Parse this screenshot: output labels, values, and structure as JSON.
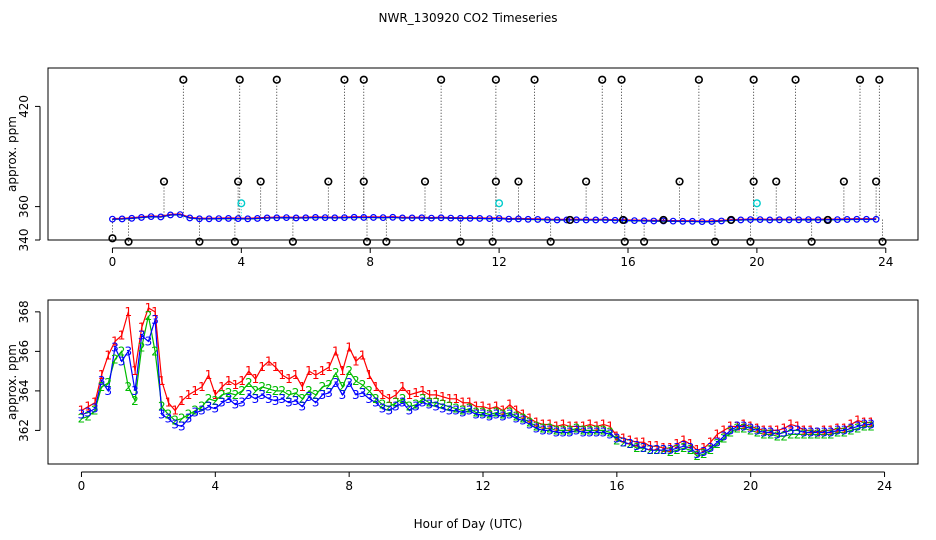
{
  "figure": {
    "title": "NWR_130920  CO2 Timeseries",
    "xlabel": "Hour of Day (UTC)"
  },
  "colors": {
    "series1": "#ff0000",
    "series2": "#00bb00",
    "series3": "#0000ff",
    "outlier": "#000000",
    "flagged": "#00cccc",
    "axis": "#000000"
  },
  "chart_data": [
    {
      "type": "scatter",
      "panel": "top",
      "title": "",
      "xlabel": "",
      "ylabel": "approx. ppm",
      "xlim": [
        -2,
        25
      ],
      "ylim": [
        340,
        443
      ],
      "xticks": [
        0,
        4,
        8,
        12,
        16,
        20,
        24
      ],
      "yticks": [
        340,
        360,
        420
      ],
      "ytick_labels": [
        "340",
        "360",
        "420"
      ],
      "grid": false,
      "baseline_hours": [
        0.0,
        0.3,
        0.6,
        0.9,
        1.2,
        1.5,
        1.8,
        2.1,
        2.4,
        2.7,
        3.0,
        3.3,
        3.6,
        3.9,
        4.2,
        4.5,
        4.8,
        5.1,
        5.4,
        5.7,
        6.0,
        6.3,
        6.6,
        6.9,
        7.2,
        7.5,
        7.8,
        8.1,
        8.4,
        8.7,
        9.0,
        9.3,
        9.6,
        9.9,
        10.2,
        10.5,
        10.8,
        11.1,
        11.4,
        11.7,
        12.0,
        12.3,
        12.6,
        12.9,
        13.2,
        13.5,
        13.8,
        14.1,
        14.4,
        14.7,
        15.0,
        15.3,
        15.6,
        15.9,
        16.2,
        16.5,
        16.8,
        17.1,
        17.4,
        17.7,
        18.0,
        18.3,
        18.6,
        18.9,
        19.2,
        19.5,
        19.8,
        20.1,
        20.4,
        20.7,
        21.0,
        21.3,
        21.6,
        21.9,
        22.2,
        22.5,
        22.8,
        23.1,
        23.4,
        23.7
      ],
      "baseline_values": [
        352.5,
        352.6,
        353.0,
        353.5,
        354.0,
        353.8,
        355.0,
        355.2,
        353.2,
        352.7,
        352.7,
        352.8,
        352.9,
        352.8,
        352.7,
        352.9,
        353.2,
        353.3,
        353.4,
        353.2,
        353.3,
        353.5,
        353.4,
        353.3,
        353.4,
        353.6,
        353.5,
        353.5,
        353.4,
        353.6,
        353.2,
        353.2,
        353.3,
        353.1,
        353.3,
        353.1,
        353.0,
        353.0,
        352.9,
        352.8,
        352.9,
        352.5,
        352.6,
        352.4,
        352.3,
        352.1,
        352.0,
        352.0,
        352.1,
        352.0,
        352.0,
        352.0,
        351.8,
        351.7,
        351.6,
        351.5,
        351.4,
        351.4,
        351.3,
        351.2,
        351.2,
        351.0,
        351.1,
        351.4,
        351.8,
        352.0,
        352.2,
        352.2,
        352.0,
        352.1,
        352.1,
        352.1,
        352.2,
        352.1,
        352.2,
        352.2,
        352.3,
        352.4,
        352.4,
        352.4
      ],
      "outliers": {
        "hours": [
          0.0,
          0.5,
          1.6,
          2.2,
          2.7,
          3.8,
          3.9,
          3.95,
          4.6,
          5.1,
          5.6,
          6.7,
          7.2,
          7.8,
          7.8,
          7.9,
          8.5,
          9.7,
          10.2,
          10.8,
          11.8,
          11.9,
          11.9,
          12.6,
          13.1,
          13.6,
          14.2,
          14.7,
          15.2,
          15.8,
          15.85,
          15.9,
          16.5,
          17.1,
          17.6,
          18.2,
          18.7,
          19.2,
          19.8,
          19.9,
          19.9,
          20.6,
          21.2,
          21.7,
          22.2,
          22.7,
          23.2,
          23.7,
          23.8,
          23.9
        ],
        "values": [
          341,
          339,
          375,
          436,
          339,
          339,
          375,
          436,
          375,
          436,
          339,
          375,
          436,
          375,
          436,
          339,
          339,
          375,
          436,
          339,
          339,
          375,
          436,
          375,
          436,
          339,
          352,
          375,
          436,
          436,
          352,
          339,
          339,
          352,
          375,
          436,
          339,
          352,
          339,
          375,
          436,
          375,
          436,
          339,
          352,
          375,
          436,
          375,
          436,
          339
        ]
      },
      "flagged": {
        "hours": [
          4.0,
          12.0,
          20.0
        ],
        "values": [
          362,
          362,
          362
        ]
      }
    },
    {
      "type": "line",
      "panel": "bottom",
      "title": "",
      "xlabel": "Hour of Day (UTC)",
      "ylabel": "approx. ppm",
      "xlim": [
        -1,
        25
      ],
      "ylim": [
        360.3,
        368.6
      ],
      "xticks": [
        0,
        4,
        8,
        12,
        16,
        20,
        24
      ],
      "yticks": [
        362,
        364,
        366,
        368
      ],
      "grid": false,
      "series_markers": [
        "1",
        "2",
        "3"
      ],
      "x": [
        0.0,
        0.2,
        0.4,
        0.6,
        0.8,
        1.0,
        1.2,
        1.4,
        1.6,
        1.8,
        2.0,
        2.2,
        2.4,
        2.6,
        2.8,
        3.0,
        3.2,
        3.4,
        3.6,
        3.8,
        4.0,
        4.2,
        4.4,
        4.6,
        4.8,
        5.0,
        5.2,
        5.4,
        5.6,
        5.8,
        6.0,
        6.2,
        6.4,
        6.6,
        6.8,
        7.0,
        7.2,
        7.4,
        7.6,
        7.8,
        8.0,
        8.2,
        8.4,
        8.6,
        8.8,
        9.0,
        9.2,
        9.4,
        9.6,
        9.8,
        10.0,
        10.2,
        10.4,
        10.6,
        10.8,
        11.0,
        11.2,
        11.4,
        11.6,
        11.8,
        12.0,
        12.2,
        12.4,
        12.6,
        12.8,
        13.0,
        13.2,
        13.4,
        13.6,
        13.8,
        14.0,
        14.2,
        14.4,
        14.6,
        14.8,
        15.0,
        15.2,
        15.4,
        15.6,
        15.8,
        16.0,
        16.2,
        16.4,
        16.6,
        16.8,
        17.0,
        17.2,
        17.4,
        17.6,
        17.8,
        18.0,
        18.2,
        18.4,
        18.6,
        18.8,
        19.0,
        19.2,
        19.4,
        19.6,
        19.8,
        20.0,
        20.2,
        20.4,
        20.6,
        20.8,
        21.0,
        21.2,
        21.4,
        21.6,
        21.8,
        22.0,
        22.2,
        22.4,
        22.6,
        22.8,
        23.0,
        23.2,
        23.4,
        23.6
      ],
      "series": [
        {
          "name": "1",
          "values": [
            363.0,
            363.2,
            363.4,
            364.8,
            365.8,
            366.5,
            366.8,
            368.0,
            365.0,
            367.2,
            368.2,
            368.0,
            364.5,
            363.4,
            363.0,
            363.5,
            363.8,
            364.0,
            364.2,
            364.8,
            363.8,
            364.2,
            364.5,
            364.3,
            364.5,
            365.0,
            364.6,
            365.2,
            365.5,
            365.2,
            364.8,
            364.6,
            364.8,
            364.2,
            365.0,
            364.8,
            365.0,
            365.2,
            366.0,
            365.0,
            366.2,
            365.5,
            365.8,
            364.8,
            364.2,
            363.8,
            363.6,
            363.8,
            364.2,
            363.8,
            363.9,
            364.0,
            363.8,
            363.8,
            363.7,
            363.6,
            363.6,
            363.4,
            363.4,
            363.2,
            363.2,
            363.1,
            363.2,
            363.0,
            363.3,
            363.0,
            362.8,
            362.6,
            362.4,
            362.3,
            362.3,
            362.2,
            362.3,
            362.2,
            362.2,
            362.2,
            362.3,
            362.2,
            362.3,
            362.2,
            361.7,
            361.6,
            361.5,
            361.4,
            361.4,
            361.2,
            361.2,
            361.1,
            361.1,
            361.3,
            361.5,
            361.3,
            361.0,
            361.1,
            361.4,
            361.8,
            362.0,
            362.2,
            362.2,
            362.3,
            362.2,
            362.1,
            362.0,
            362.0,
            362.0,
            362.1,
            362.3,
            362.2,
            362.0,
            362.0,
            361.9,
            362.0,
            362.0,
            362.1,
            362.1,
            362.3,
            362.5,
            362.4,
            362.4
          ]
        },
        {
          "name": "2",
          "values": [
            362.6,
            362.7,
            363.0,
            364.2,
            364.4,
            365.6,
            366.0,
            364.2,
            363.5,
            366.2,
            367.8,
            366.0,
            363.2,
            362.8,
            362.5,
            362.6,
            362.8,
            363.0,
            363.2,
            363.6,
            363.5,
            363.8,
            363.9,
            363.8,
            364.0,
            364.4,
            364.0,
            364.2,
            364.1,
            364.0,
            364.0,
            363.8,
            363.9,
            363.6,
            364.0,
            363.8,
            364.2,
            364.3,
            364.9,
            364.2,
            365.0,
            364.5,
            364.3,
            364.0,
            363.6,
            363.3,
            363.2,
            363.4,
            363.6,
            363.2,
            363.3,
            363.6,
            363.4,
            363.4,
            363.3,
            363.2,
            363.1,
            363.0,
            363.1,
            362.9,
            362.9,
            362.8,
            362.9,
            362.8,
            362.9,
            362.7,
            362.6,
            362.4,
            362.2,
            362.1,
            362.1,
            362.0,
            362.0,
            362.0,
            362.1,
            362.0,
            362.0,
            362.0,
            362.0,
            361.9,
            361.5,
            361.4,
            361.3,
            361.1,
            361.1,
            361.0,
            361.0,
            361.0,
            360.9,
            361.0,
            361.1,
            361.0,
            360.7,
            360.8,
            361.0,
            361.3,
            361.6,
            361.9,
            362.1,
            362.1,
            362.0,
            361.9,
            361.8,
            361.8,
            361.7,
            361.7,
            361.8,
            361.8,
            361.8,
            361.8,
            361.8,
            361.8,
            361.8,
            361.9,
            361.9,
            362.0,
            362.1,
            362.2,
            362.2
          ]
        },
        {
          "name": "3",
          "values": [
            362.8,
            362.9,
            363.1,
            364.5,
            364.0,
            366.2,
            365.5,
            366.0,
            364.0,
            366.8,
            366.5,
            367.6,
            362.8,
            362.6,
            362.3,
            362.2,
            362.6,
            362.9,
            363.0,
            363.2,
            363.1,
            363.4,
            363.6,
            363.3,
            363.4,
            363.8,
            363.6,
            363.8,
            363.6,
            363.5,
            363.6,
            363.4,
            363.5,
            363.2,
            363.7,
            363.4,
            363.8,
            363.9,
            364.4,
            363.8,
            364.4,
            363.8,
            363.9,
            363.6,
            363.4,
            363.1,
            363.0,
            363.2,
            363.4,
            363.0,
            363.2,
            363.4,
            363.3,
            363.2,
            363.1,
            363.0,
            363.0,
            362.9,
            363.0,
            362.8,
            362.8,
            362.7,
            362.8,
            362.7,
            362.8,
            362.6,
            362.5,
            362.3,
            362.1,
            362.0,
            362.0,
            361.9,
            361.9,
            361.9,
            362.0,
            361.9,
            361.9,
            361.9,
            361.9,
            361.8,
            361.6,
            361.4,
            361.3,
            361.2,
            361.1,
            361.0,
            361.0,
            361.0,
            361.0,
            361.1,
            361.2,
            361.1,
            360.8,
            360.9,
            361.1,
            361.4,
            361.7,
            362.0,
            362.2,
            362.2,
            362.1,
            362.0,
            361.9,
            361.9,
            361.8,
            361.9,
            362.0,
            362.0,
            361.9,
            361.9,
            361.9,
            361.9,
            361.9,
            362.0,
            362.0,
            362.1,
            362.2,
            362.3,
            362.3
          ]
        }
      ]
    }
  ]
}
